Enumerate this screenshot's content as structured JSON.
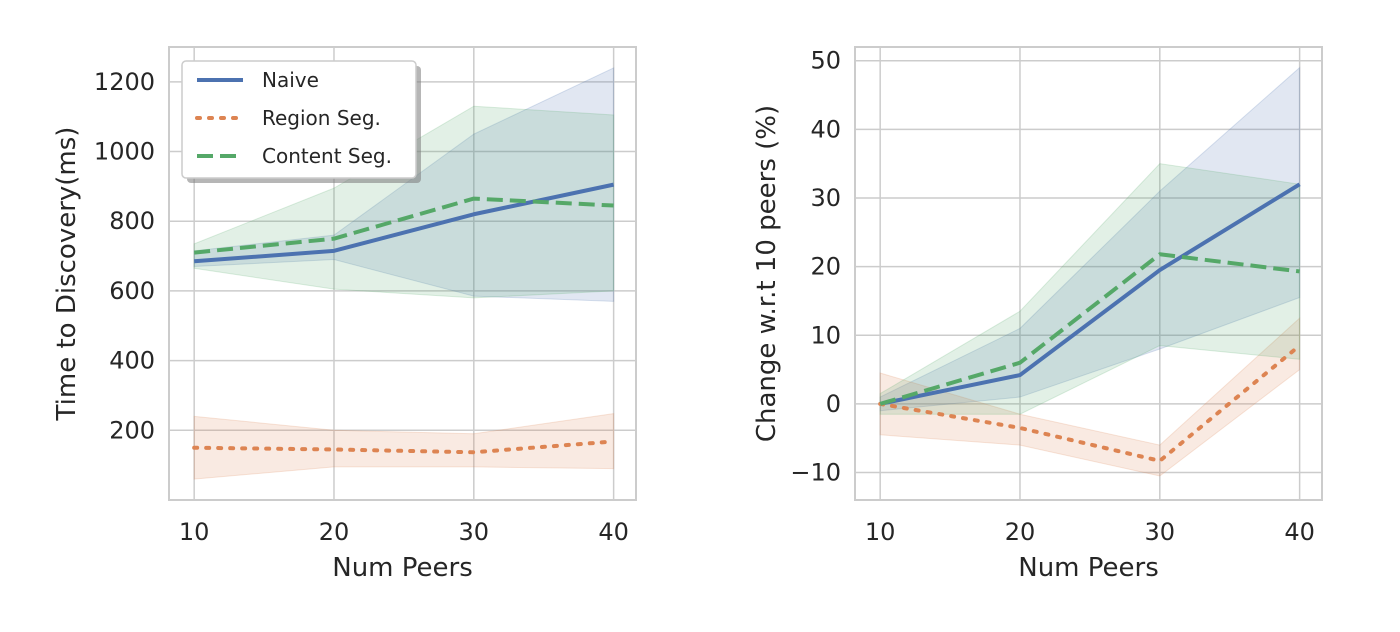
{
  "colors": {
    "naive": "#4c72b0",
    "region": "#dd8452",
    "content": "#55a868",
    "grid": "#cccccc",
    "frame": "#cccccc"
  },
  "legend": {
    "placement": "top-left",
    "entries": [
      {
        "label": "Naive",
        "style": "solid",
        "color": "#4c72b0"
      },
      {
        "label": "Region Seg.",
        "style": "dotted",
        "color": "#dd8452"
      },
      {
        "label": "Content Seg.",
        "style": "dashed",
        "color": "#55a868"
      }
    ]
  },
  "chart_data": [
    {
      "type": "line",
      "xlabel": "Num Peers",
      "ylabel": "Time to Discovery(ms)",
      "x": [
        10,
        20,
        30,
        40
      ],
      "xticks": [
        10,
        20,
        30,
        40
      ],
      "xlim": [
        8.2,
        41.6
      ],
      "ylim": [
        0,
        1300
      ],
      "yticks": [
        200,
        400,
        600,
        800,
        1000,
        1200
      ],
      "grid": true,
      "series": [
        {
          "name": "Naive",
          "style": "solid",
          "color": "#4c72b0",
          "values": [
            685,
            715,
            820,
            905
          ],
          "band_low": [
            670,
            690,
            585,
            570
          ],
          "band_high": [
            715,
            760,
            1050,
            1240
          ]
        },
        {
          "name": "Region Seg.",
          "style": "dotted",
          "color": "#dd8452",
          "values": [
            150,
            145,
            137,
            168
          ],
          "band_low": [
            60,
            95,
            95,
            90
          ],
          "band_high": [
            240,
            200,
            190,
            248
          ]
        },
        {
          "name": "Content Seg.",
          "style": "dashed",
          "color": "#55a868",
          "values": [
            710,
            750,
            865,
            845
          ],
          "band_low": [
            665,
            605,
            580,
            600
          ],
          "band_high": [
            735,
            895,
            1130,
            1105
          ]
        }
      ]
    },
    {
      "type": "line",
      "xlabel": "Num Peers",
      "ylabel": "Change w.r.t 10 peers (%)",
      "x": [
        10,
        20,
        30,
        40
      ],
      "xticks": [
        10,
        20,
        30,
        40
      ],
      "xlim": [
        8.2,
        41.6
      ],
      "ylim": [
        -14,
        52
      ],
      "yticks": [
        -10,
        0,
        10,
        20,
        30,
        40,
        50
      ],
      "ytick_labels": [
        "−10",
        "0",
        "10",
        "20",
        "30",
        "40",
        "50"
      ],
      "grid": true,
      "series": [
        {
          "name": "Naive",
          "style": "solid",
          "color": "#4c72b0",
          "values": [
            0,
            4.2,
            19.5,
            32
          ],
          "band_low": [
            -1,
            1,
            8,
            15.5
          ],
          "band_high": [
            1,
            11,
            31,
            49
          ]
        },
        {
          "name": "Region Seg.",
          "style": "dotted",
          "color": "#dd8452",
          "values": [
            0,
            -3.5,
            -8.3,
            8.5
          ],
          "band_low": [
            -4.5,
            -6,
            -10.5,
            5
          ],
          "band_high": [
            4.5,
            -1.5,
            -6,
            12.5
          ]
        },
        {
          "name": "Content Seg.",
          "style": "dashed",
          "color": "#55a868",
          "values": [
            0,
            6,
            21.8,
            19.3
          ],
          "band_low": [
            -1.5,
            -1.5,
            8.5,
            6.5
          ],
          "band_high": [
            1.5,
            13.5,
            35,
            32
          ]
        }
      ]
    }
  ]
}
